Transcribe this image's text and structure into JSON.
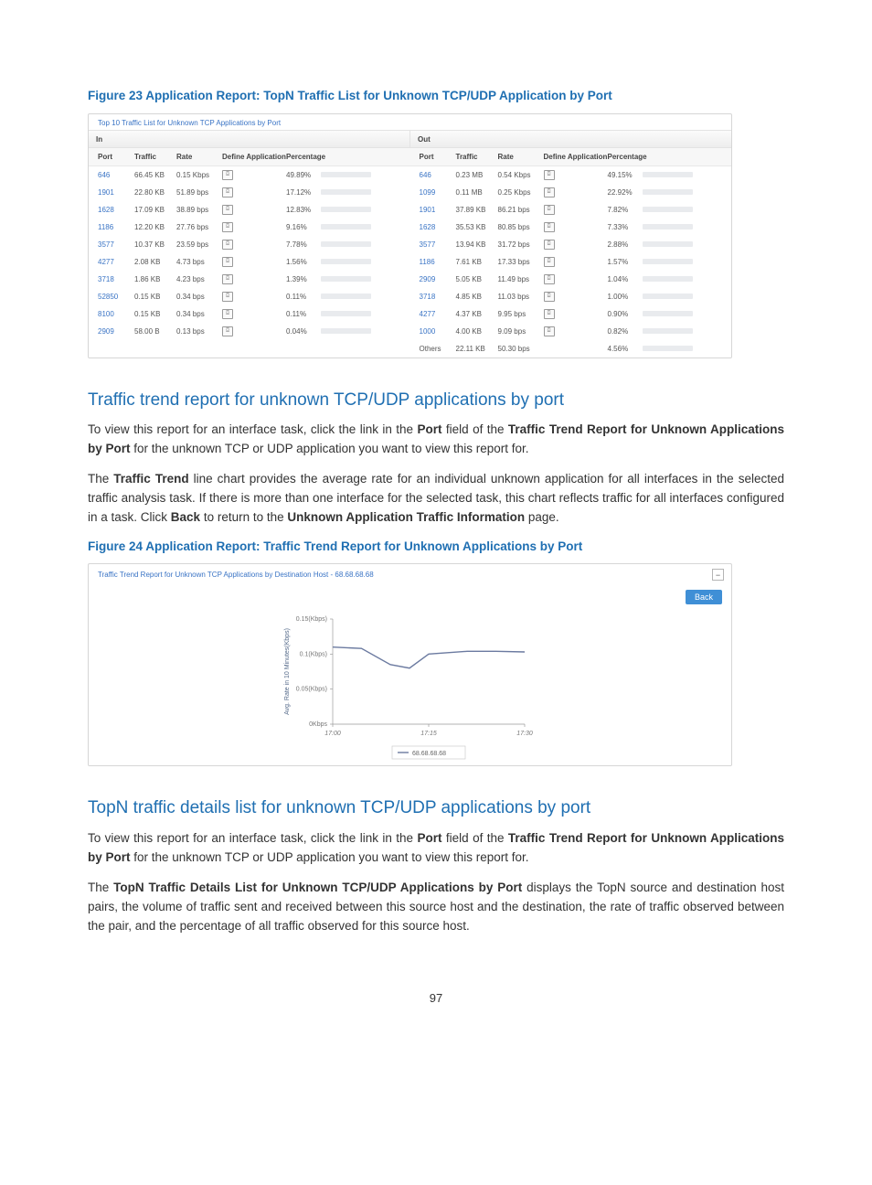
{
  "page_number": "97",
  "fig23": {
    "caption": "Figure 23 Application Report: TopN Traffic List for Unknown TCP/UDP Application by Port",
    "panel_title": "Top 10 Traffic List for Unknown TCP Applications by Port",
    "in_label": "In",
    "out_label": "Out",
    "columns": {
      "port": "Port",
      "traffic": "Traffic",
      "rate": "Rate",
      "define": "Define Application",
      "percentage": "Percentage"
    },
    "bar_color": "#6fbf4a",
    "bar_track_color": "#e9ebee",
    "link_color": "#3a74c5",
    "in_rows": [
      {
        "port": "646",
        "traffic": "66.45 KB",
        "rate": "0.15 Kbps",
        "pct_text": "49.89%",
        "pct": 49.89
      },
      {
        "port": "1901",
        "traffic": "22.80 KB",
        "rate": "51.89 bps",
        "pct_text": "17.12%",
        "pct": 17.12
      },
      {
        "port": "1628",
        "traffic": "17.09 KB",
        "rate": "38.89 bps",
        "pct_text": "12.83%",
        "pct": 12.83
      },
      {
        "port": "1186",
        "traffic": "12.20 KB",
        "rate": "27.76 bps",
        "pct_text": "9.16%",
        "pct": 9.16
      },
      {
        "port": "3577",
        "traffic": "10.37 KB",
        "rate": "23.59 bps",
        "pct_text": "7.78%",
        "pct": 7.78
      },
      {
        "port": "4277",
        "traffic": "2.08 KB",
        "rate": "4.73 bps",
        "pct_text": "1.56%",
        "pct": 1.56
      },
      {
        "port": "3718",
        "traffic": "1.86 KB",
        "rate": "4.23 bps",
        "pct_text": "1.39%",
        "pct": 1.39
      },
      {
        "port": "52850",
        "traffic": "0.15 KB",
        "rate": "0.34 bps",
        "pct_text": "0.11%",
        "pct": 0.11
      },
      {
        "port": "8100",
        "traffic": "0.15 KB",
        "rate": "0.34 bps",
        "pct_text": "0.11%",
        "pct": 0.11
      },
      {
        "port": "2909",
        "traffic": "58.00 B",
        "rate": "0.13 bps",
        "pct_text": "0.04%",
        "pct": 0.04
      }
    ],
    "out_rows": [
      {
        "port": "646",
        "traffic": "0.23 MB",
        "rate": "0.54 Kbps",
        "pct_text": "49.15%",
        "pct": 49.15
      },
      {
        "port": "1099",
        "traffic": "0.11 MB",
        "rate": "0.25 Kbps",
        "pct_text": "22.92%",
        "pct": 22.92
      },
      {
        "port": "1901",
        "traffic": "37.89 KB",
        "rate": "86.21 bps",
        "pct_text": "7.82%",
        "pct": 7.82
      },
      {
        "port": "1628",
        "traffic": "35.53 KB",
        "rate": "80.85 bps",
        "pct_text": "7.33%",
        "pct": 7.33
      },
      {
        "port": "3577",
        "traffic": "13.94 KB",
        "rate": "31.72 bps",
        "pct_text": "2.88%",
        "pct": 2.88
      },
      {
        "port": "1186",
        "traffic": "7.61 KB",
        "rate": "17.33 bps",
        "pct_text": "1.57%",
        "pct": 1.57
      },
      {
        "port": "2909",
        "traffic": "5.05 KB",
        "rate": "11.49 bps",
        "pct_text": "1.04%",
        "pct": 1.04
      },
      {
        "port": "3718",
        "traffic": "4.85 KB",
        "rate": "11.03 bps",
        "pct_text": "1.00%",
        "pct": 1.0
      },
      {
        "port": "4277",
        "traffic": "4.37 KB",
        "rate": "9.95 bps",
        "pct_text": "0.90%",
        "pct": 0.9
      },
      {
        "port": "1000",
        "traffic": "4.00 KB",
        "rate": "9.09 bps",
        "pct_text": "0.82%",
        "pct": 0.82
      }
    ],
    "out_others": {
      "label": "Others",
      "traffic": "22.11 KB",
      "rate": "50.30 bps",
      "pct_text": "4.56%",
      "pct": 4.56
    }
  },
  "section1": {
    "heading": "Traffic trend report for unknown TCP/UDP applications by port",
    "para1_a": "To view this report for an interface task, click the link in the ",
    "para1_b": "Port",
    "para1_c": " field of the ",
    "para1_d": "Traffic Trend Report for Unknown Applications by Port",
    "para1_e": " for the unknown TCP or UDP application you want to view this report for.",
    "para2_a": "The ",
    "para2_b": "Traffic Trend",
    "para2_c": " line chart provides the average rate for an individual unknown application for all interfaces in the selected traffic analysis task. If there is more than one interface for the selected task, this chart reflects traffic for all interfaces configured in a task. Click ",
    "para2_d": "Back",
    "para2_e": " to return to the ",
    "para2_f": "Unknown Application Traffic Information",
    "para2_g": " page."
  },
  "fig24": {
    "caption": "Figure 24 Application Report: Traffic Trend Report for Unknown Applications by Port",
    "panel_title": "Traffic Trend Report for Unknown TCP Applications by Destination Host - 68.68.68.68",
    "back_label": "Back",
    "collapse_glyph": "−",
    "chart": {
      "type": "line",
      "series_color": "#6b7aa0",
      "axis_color": "#9a9a9a",
      "bg_color": "#ffffff",
      "y_label": "Avg. Rate in 10 Minutes(Kbps)",
      "y_ticks": [
        "0Kbps",
        "0.05(Kbps)",
        "0.1(Kbps)",
        "0.15(Kbps)"
      ],
      "y_vals": [
        0,
        0.05,
        0.1,
        0.15
      ],
      "ylim": [
        0,
        0.15
      ],
      "x_ticks": [
        "17:00",
        "17:15",
        "17:30"
      ],
      "x_positions": [
        0,
        0.5,
        1.0
      ],
      "points": [
        {
          "x": 0.0,
          "y": 0.11
        },
        {
          "x": 0.15,
          "y": 0.108
        },
        {
          "x": 0.3,
          "y": 0.085
        },
        {
          "x": 0.4,
          "y": 0.08
        },
        {
          "x": 0.5,
          "y": 0.1
        },
        {
          "x": 0.7,
          "y": 0.104
        },
        {
          "x": 0.85,
          "y": 0.104
        },
        {
          "x": 1.0,
          "y": 0.103
        }
      ],
      "legend_label": "68.68.68.68"
    }
  },
  "section2": {
    "heading": "TopN traffic details list for unknown TCP/UDP applications by port",
    "para1_a": "To view this report for an interface task, click the link in the ",
    "para1_b": "Port",
    "para1_c": " field of the ",
    "para1_d": "Traffic Trend Report for Unknown Applications by Port",
    "para1_e": " for the unknown TCP or UDP application you want to view this report for.",
    "para2_a": "The ",
    "para2_b": "TopN Traffic Details List for Unknown TCP/UDP Applications by Port",
    "para2_c": " displays the TopN source and destination host pairs, the volume of traffic sent and received between this source host and the destination, the rate of traffic observed between the pair, and the percentage of all traffic observed for this source host."
  }
}
